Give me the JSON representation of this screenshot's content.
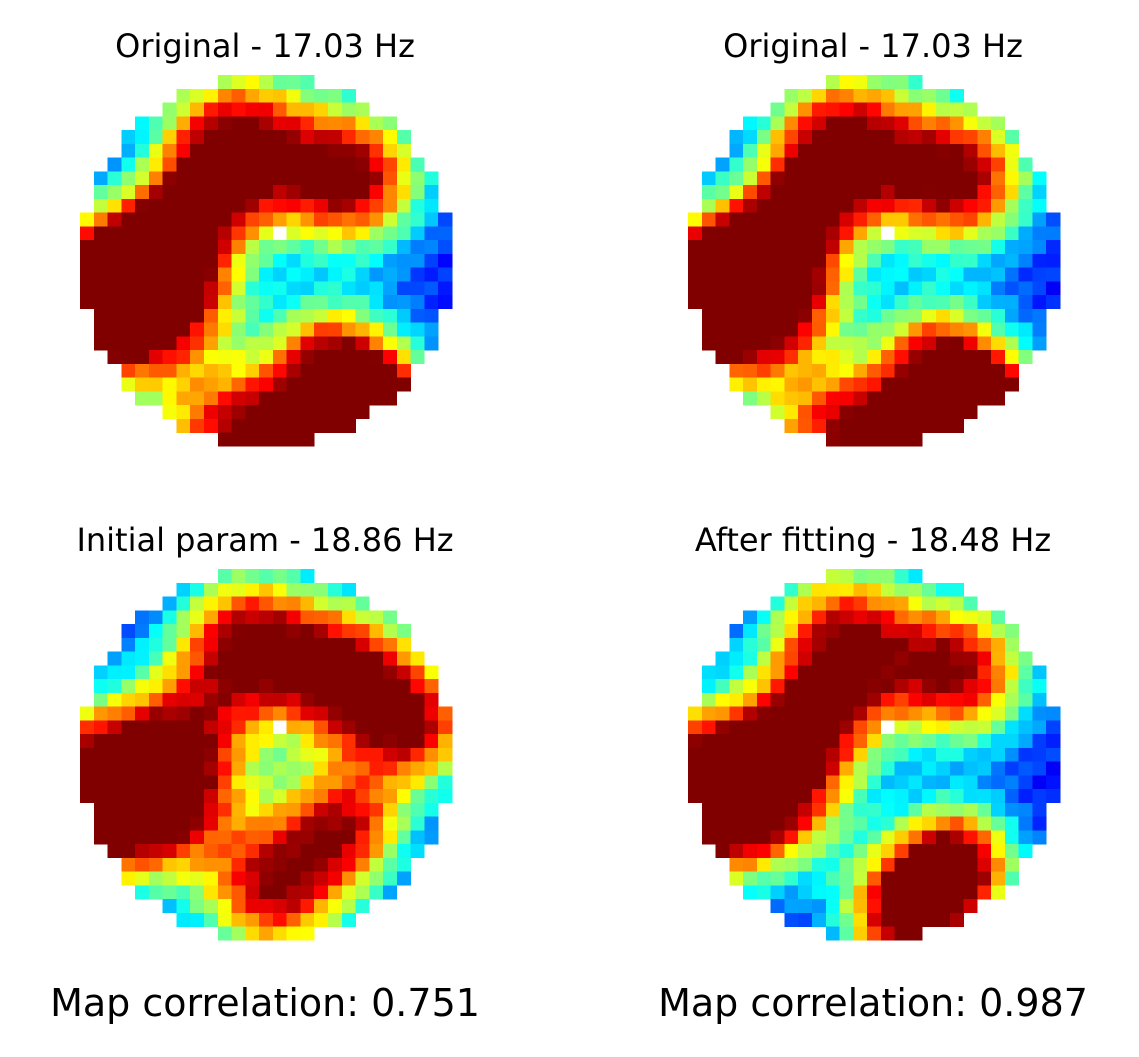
{
  "chart_data": [
    {
      "type": "heatmap",
      "title": "Original - 17.03 Hz",
      "colormap": "jet",
      "grid_size": 27,
      "mask": "circular",
      "caption": "",
      "peaks": [
        {
          "x": 0.74,
          "y": 0.92,
          "sx": 0.55,
          "sy": 0.55,
          "a": 0.95
        },
        {
          "x": 0.8,
          "y": 0.95,
          "sx": 0.35,
          "sy": 0.35,
          "a": 0.9
        },
        {
          "x": 0.67,
          "y": 0.75,
          "sx": 0.38,
          "sy": 0.38,
          "a": 0.4
        },
        {
          "x": 0.41,
          "y": 0.98,
          "sx": 0.55,
          "sy": 0.45,
          "a": 0.75
        },
        {
          "x": 0.56,
          "y": 1.0,
          "sx": 0.3,
          "sy": 0.3,
          "a": 0.35
        },
        {
          "x": 0.2,
          "y": 0.58,
          "sx": 0.55,
          "sy": 0.55,
          "a": 0.98
        },
        {
          "x": 0.22,
          "y": 0.44,
          "sx": 0.35,
          "sy": 0.35,
          "a": 0.5
        },
        {
          "x": 0.42,
          "y": 0.18,
          "sx": 0.55,
          "sy": 0.55,
          "a": 0.92
        },
        {
          "x": 0.34,
          "y": 0.3,
          "sx": 0.35,
          "sy": 0.35,
          "a": 0.4
        },
        {
          "x": 0.74,
          "y": 0.27,
          "sx": 0.5,
          "sy": 0.5,
          "a": 0.88
        },
        {
          "x": 0.0,
          "y": 0.62,
          "sx": 0.55,
          "sy": 0.55,
          "a": 1.0
        }
      ]
    },
    {
      "type": "heatmap",
      "title": "Original - 17.03 Hz",
      "colormap": "jet",
      "grid_size": 27,
      "mask": "circular",
      "caption": "",
      "peaks": [
        {
          "x": 0.74,
          "y": 0.92,
          "sx": 0.55,
          "sy": 0.55,
          "a": 0.95
        },
        {
          "x": 0.8,
          "y": 0.95,
          "sx": 0.35,
          "sy": 0.35,
          "a": 0.9
        },
        {
          "x": 0.67,
          "y": 0.75,
          "sx": 0.38,
          "sy": 0.38,
          "a": 0.4
        },
        {
          "x": 0.41,
          "y": 0.98,
          "sx": 0.55,
          "sy": 0.45,
          "a": 0.75
        },
        {
          "x": 0.56,
          "y": 1.0,
          "sx": 0.3,
          "sy": 0.3,
          "a": 0.35
        },
        {
          "x": 0.2,
          "y": 0.58,
          "sx": 0.55,
          "sy": 0.55,
          "a": 0.98
        },
        {
          "x": 0.22,
          "y": 0.44,
          "sx": 0.35,
          "sy": 0.35,
          "a": 0.5
        },
        {
          "x": 0.42,
          "y": 0.18,
          "sx": 0.55,
          "sy": 0.55,
          "a": 0.92
        },
        {
          "x": 0.34,
          "y": 0.3,
          "sx": 0.35,
          "sy": 0.35,
          "a": 0.4
        },
        {
          "x": 0.74,
          "y": 0.27,
          "sx": 0.5,
          "sy": 0.5,
          "a": 0.88
        },
        {
          "x": 0.0,
          "y": 0.62,
          "sx": 0.55,
          "sy": 0.55,
          "a": 1.0
        }
      ]
    },
    {
      "type": "heatmap",
      "title": "Initial param - 18.86 Hz",
      "colormap": "jet",
      "grid_size": 27,
      "mask": "circular",
      "caption": "Map correlation: 0.751",
      "peaks": [
        {
          "x": 0.52,
          "y": 0.88,
          "sx": 0.5,
          "sy": 0.5,
          "a": 0.8
        },
        {
          "x": 0.2,
          "y": 0.6,
          "sx": 0.55,
          "sy": 0.55,
          "a": 0.88
        },
        {
          "x": 0.45,
          "y": 0.18,
          "sx": 0.5,
          "sy": 0.5,
          "a": 0.82
        },
        {
          "x": 0.72,
          "y": 0.28,
          "sx": 0.5,
          "sy": 0.5,
          "a": 0.88
        },
        {
          "x": 0.72,
          "y": 0.7,
          "sx": 0.45,
          "sy": 0.45,
          "a": 0.72
        },
        {
          "x": 0.92,
          "y": 0.42,
          "sx": 0.45,
          "sy": 0.45,
          "a": 0.72
        },
        {
          "x": 0.0,
          "y": 0.62,
          "sx": 0.55,
          "sy": 0.55,
          "a": 1.0
        },
        {
          "x": 0.3,
          "y": 0.4,
          "sx": 0.5,
          "sy": 0.5,
          "a": 0.4
        }
      ]
    },
    {
      "type": "heatmap",
      "title": "After fitting - 18.48 Hz",
      "colormap": "jet",
      "grid_size": 27,
      "mask": "circular",
      "caption": "Map correlation: 0.987",
      "peaks": [
        {
          "x": 0.6,
          "y": 0.95,
          "sx": 0.45,
          "sy": 0.45,
          "a": 0.98
        },
        {
          "x": 0.7,
          "y": 0.8,
          "sx": 0.4,
          "sy": 0.4,
          "a": 0.4
        },
        {
          "x": 0.2,
          "y": 0.58,
          "sx": 0.55,
          "sy": 0.55,
          "a": 0.92
        },
        {
          "x": 0.42,
          "y": 0.18,
          "sx": 0.55,
          "sy": 0.55,
          "a": 0.82
        },
        {
          "x": 0.74,
          "y": 0.27,
          "sx": 0.5,
          "sy": 0.5,
          "a": 0.82
        },
        {
          "x": 0.75,
          "y": 0.8,
          "sx": 0.4,
          "sy": 0.4,
          "a": 0.5
        },
        {
          "x": 0.0,
          "y": 0.62,
          "sx": 0.55,
          "sy": 0.55,
          "a": 1.0
        },
        {
          "x": 0.35,
          "y": 0.4,
          "sx": 0.45,
          "sy": 0.45,
          "a": 0.45
        }
      ]
    }
  ]
}
